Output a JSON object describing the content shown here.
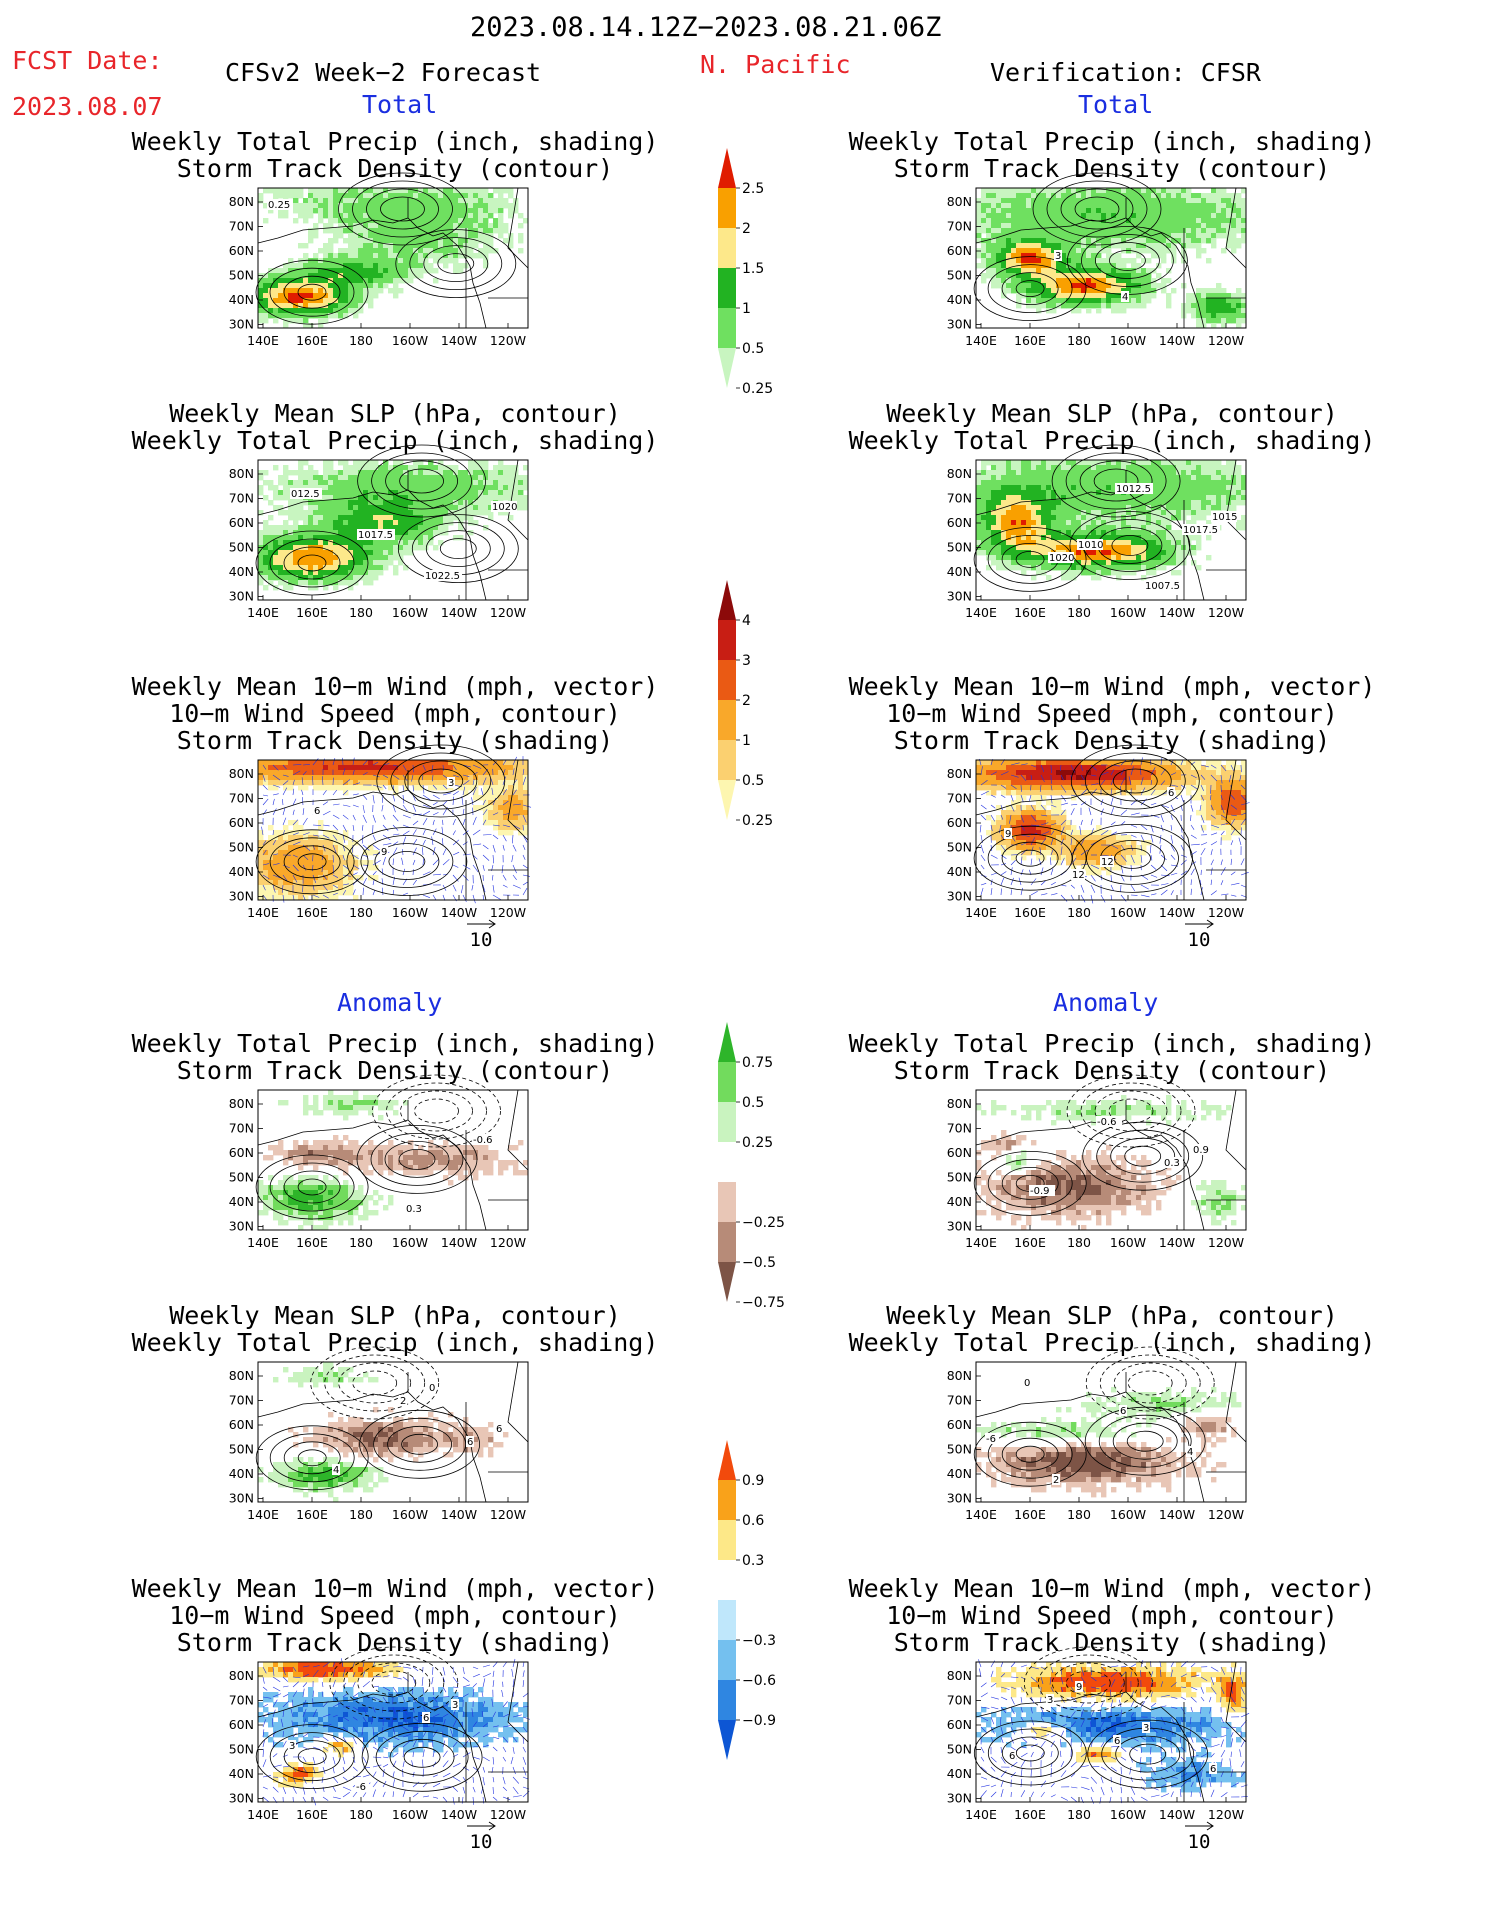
{
  "header": {
    "date_range": "2023.08.14.12Z−2023.08.21.06Z",
    "fcst_label": "FCST Date:",
    "fcst_date": "2023.08.07",
    "forecast_title": "CFSv2 Week−2 Forecast",
    "region": "N. Pacific",
    "verification_title": "Verification: CFSR"
  },
  "colors": {
    "ocean": "#ffffff",
    "land_line": "#000000",
    "total_precip_scale": [
      "#c8f5c0",
      "#6fe060",
      "#37c834",
      "#17a018",
      "#fde88a",
      "#f9a000",
      "#f06000",
      "#e01c00"
    ],
    "storm_density_scale": [
      "#fdf6b0",
      "#fbd070",
      "#f9a82a",
      "#f58c10",
      "#ea5a14",
      "#c81e14",
      "#8c0a0a"
    ],
    "precip_anom_green": [
      "#c9f3bf",
      "#72db5d",
      "#2eb52a"
    ],
    "precip_anom_brown": [
      "#e8c6b6",
      "#b78b78",
      "#7d5446"
    ],
    "density_anom_blue": [
      "#bfe7fb",
      "#74c0ef",
      "#2f86e1",
      "#0d56d4"
    ],
    "density_anom_red": [
      "#fde888",
      "#f9a21a",
      "#f24a0c"
    ],
    "contour": "#000000",
    "vector": "#2030e0",
    "title_red": "#e8252a",
    "title_blue": "#1a2ee0"
  },
  "sections": {
    "total": "Total",
    "anomaly": "Anomaly"
  },
  "chart_data": [
    {
      "type": "heatmap",
      "column": "forecast",
      "section": "total",
      "title_lines": [
        "Weekly Total Precip (inch, shading)",
        "Storm Track Density (contour)"
      ],
      "contour_labels": [
        "0.25"
      ]
    },
    {
      "type": "heatmap",
      "column": "forecast",
      "section": "total",
      "title_lines": [
        "Weekly Mean SLP (hPa, contour)",
        "Weekly Total Precip (inch, shading)"
      ],
      "contour_labels": [
        "012.5",
        "1017.5",
        "1022.5",
        "1020"
      ]
    },
    {
      "type": "heatmap",
      "column": "forecast",
      "section": "total",
      "title_lines": [
        "Weekly Mean 10−m Wind (mph, vector)",
        "10−m Wind Speed (mph, contour)",
        "Storm Track Density (shading)"
      ],
      "contour_labels": [
        "6",
        "9",
        "3"
      ],
      "vector_ref": "10"
    },
    {
      "type": "heatmap",
      "column": "verification",
      "section": "total",
      "title_lines": [
        "Weekly Total Precip (inch, shading)",
        "Storm Track Density (contour)"
      ],
      "contour_labels": [
        "3",
        "4"
      ]
    },
    {
      "type": "heatmap",
      "column": "verification",
      "section": "total",
      "title_lines": [
        "Weekly Mean SLP (hPa, contour)",
        "Weekly Total Precip (inch, shading)"
      ],
      "contour_labels": [
        "1010",
        "1007.5",
        "1015",
        "1020",
        "1012.5",
        "1017.5"
      ]
    },
    {
      "type": "heatmap",
      "column": "verification",
      "section": "total",
      "title_lines": [
        "Weekly Mean 10−m Wind (mph, vector)",
        "10−m Wind Speed (mph, contour)",
        "Storm Track Density (shading)"
      ],
      "contour_labels": [
        "12",
        "6",
        "9",
        "12"
      ],
      "vector_ref": "10"
    },
    {
      "type": "heatmap",
      "column": "forecast",
      "section": "anomaly",
      "title_lines": [
        "Weekly Total Precip (inch, shading)",
        "Storm Track Density (contour)"
      ],
      "contour_labels": [
        "0.3",
        "-0.6"
      ]
    },
    {
      "type": "heatmap",
      "column": "forecast",
      "section": "anomaly",
      "title_lines": [
        "Weekly Mean SLP (hPa, contour)",
        "Weekly Total Precip (inch, shading)"
      ],
      "contour_labels": [
        "0",
        "6",
        "4",
        "2",
        "6"
      ]
    },
    {
      "type": "heatmap",
      "column": "forecast",
      "section": "anomaly",
      "title_lines": [
        "Weekly Mean 10−m Wind (mph, vector)",
        "10−m Wind Speed (mph, contour)",
        "Storm Track Density (shading)"
      ],
      "contour_labels": [
        "3",
        "3",
        "-6",
        "6"
      ],
      "vector_ref": "10"
    },
    {
      "type": "heatmap",
      "column": "verification",
      "section": "anomaly",
      "title_lines": [
        "Weekly Total Precip (inch, shading)",
        "Storm Track Density (contour)"
      ],
      "contour_labels": [
        "0.9",
        "-0.9",
        "-0.6",
        "0.3"
      ]
    },
    {
      "type": "heatmap",
      "column": "verification",
      "section": "anomaly",
      "title_lines": [
        "Weekly Mean SLP (hPa, contour)",
        "Weekly Total Precip (inch, shading)"
      ],
      "contour_labels": [
        "-6",
        "2",
        "6",
        "4",
        "0"
      ]
    },
    {
      "type": "heatmap",
      "column": "verification",
      "section": "anomaly",
      "title_lines": [
        "Weekly Mean 10−m Wind (mph, vector)",
        "10−m Wind Speed (mph, contour)",
        "Storm Track Density (shading)"
      ],
      "contour_labels": [
        "6",
        "9",
        "3",
        "6",
        "3",
        "6"
      ],
      "vector_ref": "10"
    }
  ],
  "axes": {
    "y_ticks": [
      "80N",
      "70N",
      "60N",
      "50N",
      "40N",
      "30N"
    ],
    "x_ticks": [
      "140E",
      "160E",
      "180",
      "160W",
      "140W",
      "120W"
    ]
  },
  "colorbars": [
    {
      "name": "total_precip",
      "labels": [
        "2.5",
        "2",
        "1.5",
        "1",
        "0.5",
        "0.25"
      ]
    },
    {
      "name": "storm_density",
      "labels": [
        "4",
        "3",
        "2",
        "1",
        "0.5",
        "0.25"
      ]
    },
    {
      "name": "precip_anomaly",
      "labels": [
        "0.75",
        "0.5",
        "0.25",
        "−0.25",
        "−0.5",
        "−0.75"
      ]
    },
    {
      "name": "density_anomaly",
      "labels": [
        "0.9",
        "0.6",
        "0.3",
        "−0.3",
        "−0.6",
        "−0.9"
      ]
    }
  ]
}
